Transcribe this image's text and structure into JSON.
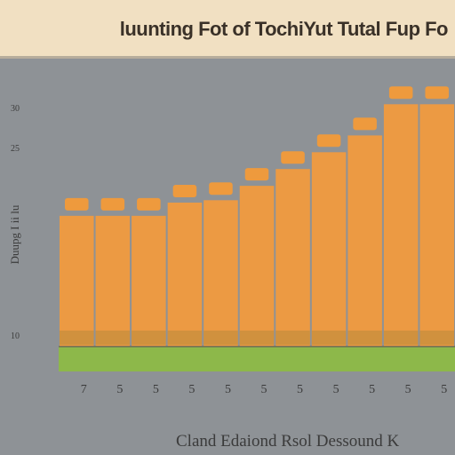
{
  "title": "luunting Fot of TochiYut Tutal Fup Fo",
  "xlabel": "Cland Edaiond Rsol Dessound K",
  "ylabel": "Duupg I ii lu",
  "colors": {
    "background": "#8e9296",
    "title_band": "#f1e0c2",
    "bar": "#ec9a43",
    "bar_cap": "#ee9a3d",
    "base_band": "#8db84a",
    "text": "#3b3b3b"
  },
  "chart_data": {
    "type": "bar",
    "title": "luunting Fot of TochiYut Tutal Fup Fo",
    "xlabel": "Cland Edaiond Rsol Dessound K",
    "ylabel": "Duupg I ii lu",
    "ylim": [
      10,
      30
    ],
    "yticks": [
      {
        "value": 30,
        "label": "30"
      },
      {
        "value": 25,
        "label": "25"
      },
      {
        "value": 10,
        "label": "10"
      }
    ],
    "categories": [
      "7",
      "5",
      "5",
      "5",
      "5",
      "5",
      "5",
      "5",
      "5",
      "5",
      "5"
    ],
    "values": [
      20.9,
      20.9,
      20.9,
      22.0,
      22.2,
      23.4,
      24.8,
      26.2,
      27.6,
      30.2,
      30.2
    ],
    "grid": false,
    "legend": "none"
  }
}
